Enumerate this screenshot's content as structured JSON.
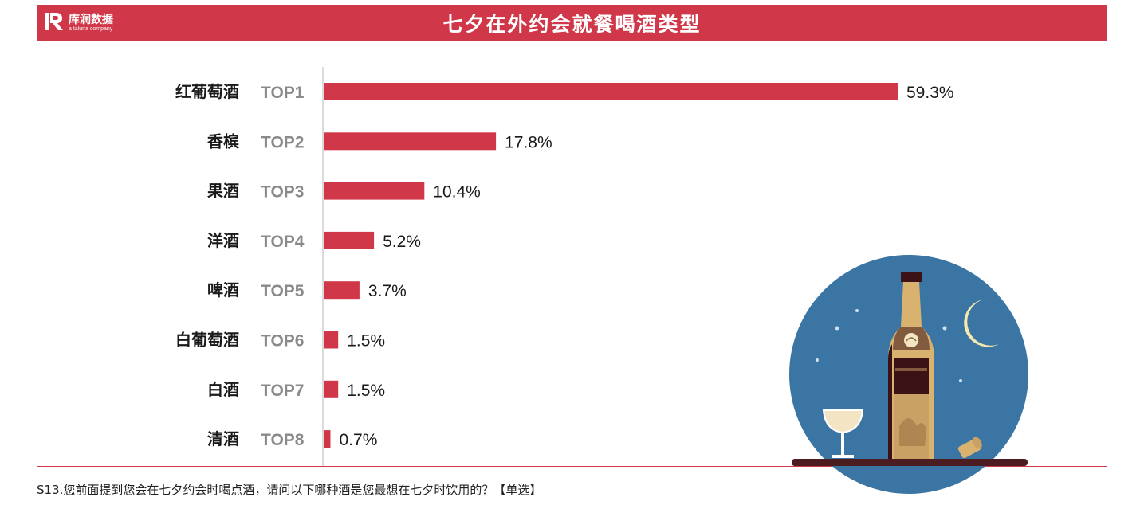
{
  "brand": {
    "name": "库润数据",
    "tagline": "a taluna company"
  },
  "colors": {
    "accent": "#d0384a",
    "bar": "#d0384a",
    "rank": "#8a8a8a",
    "night": "#3a75a3"
  },
  "chart_data": {
    "type": "bar",
    "orientation": "horizontal",
    "title": "七夕在外约会就餐喝酒类型",
    "categories": [
      "红葡萄酒",
      "香槟",
      "果酒",
      "洋酒",
      "啤酒",
      "白葡萄酒",
      "白酒",
      "清酒"
    ],
    "ranks": [
      "TOP1",
      "TOP2",
      "TOP3",
      "TOP4",
      "TOP5",
      "TOP6",
      "TOP7",
      "TOP8"
    ],
    "values": [
      59.3,
      17.8,
      10.4,
      5.2,
      3.7,
      1.5,
      1.5,
      0.7
    ],
    "value_labels": [
      "59.3%",
      "17.8%",
      "10.4%",
      "5.2%",
      "3.7%",
      "1.5%",
      "1.5%",
      "0.7%"
    ],
    "unit": "%",
    "xlim": [
      0,
      60
    ],
    "grid": false,
    "legend": "none"
  },
  "footnote": "S13.您前面提到您会在七夕约会时喝点酒，请问以下哪种酒是您最想在七夕时饮用的？【单选】",
  "illustration": "wine-bottle-moon-illustration"
}
